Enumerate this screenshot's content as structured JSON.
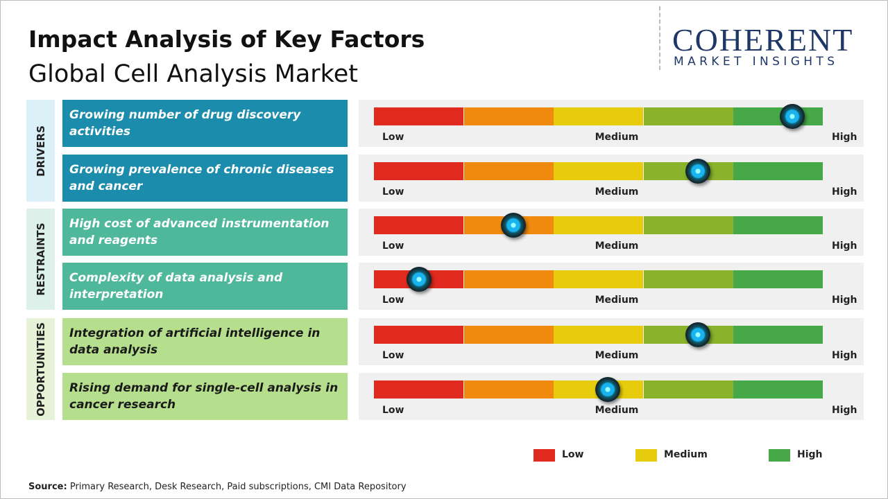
{
  "header": {
    "title": "Impact Analysis of Key Factors",
    "subtitle": "Global Cell Analysis Market"
  },
  "logo": {
    "name": "COHERENT",
    "tagline": "MARKET INSIGHTS"
  },
  "scale": {
    "low": "Low",
    "medium": "Medium",
    "high": "High"
  },
  "groups": [
    {
      "label": "DRIVERS",
      "factors": [
        {
          "text": "Growing number of drug discovery activities",
          "impact": 4.65
        },
        {
          "text": "Growing prevalence of chronic diseases and cancer",
          "impact": 3.6
        }
      ]
    },
    {
      "label": "RESTRAINTS",
      "factors": [
        {
          "text": "High cost of advanced instrumentation and reagents",
          "impact": 1.55
        },
        {
          "text": "Complexity of data analysis and interpretation",
          "impact": 0.5
        }
      ]
    },
    {
      "label": "OPPORTUNITIES",
      "factors": [
        {
          "text": "Integration of artificial intelligence in data analysis",
          "impact": 3.6
        },
        {
          "text": "Rising demand for single-cell analysis in cancer research",
          "impact": 2.6
        }
      ]
    }
  ],
  "legend": [
    {
      "label": "Low",
      "color": "#e0291f"
    },
    {
      "label": "Medium",
      "color": "#e6cc0c"
    },
    {
      "label": "High",
      "color": "#46a847"
    }
  ],
  "source": {
    "label": "Source:",
    "text": "Primary Research, Desk Research, Paid subscriptions, CMI Data Repository"
  }
}
